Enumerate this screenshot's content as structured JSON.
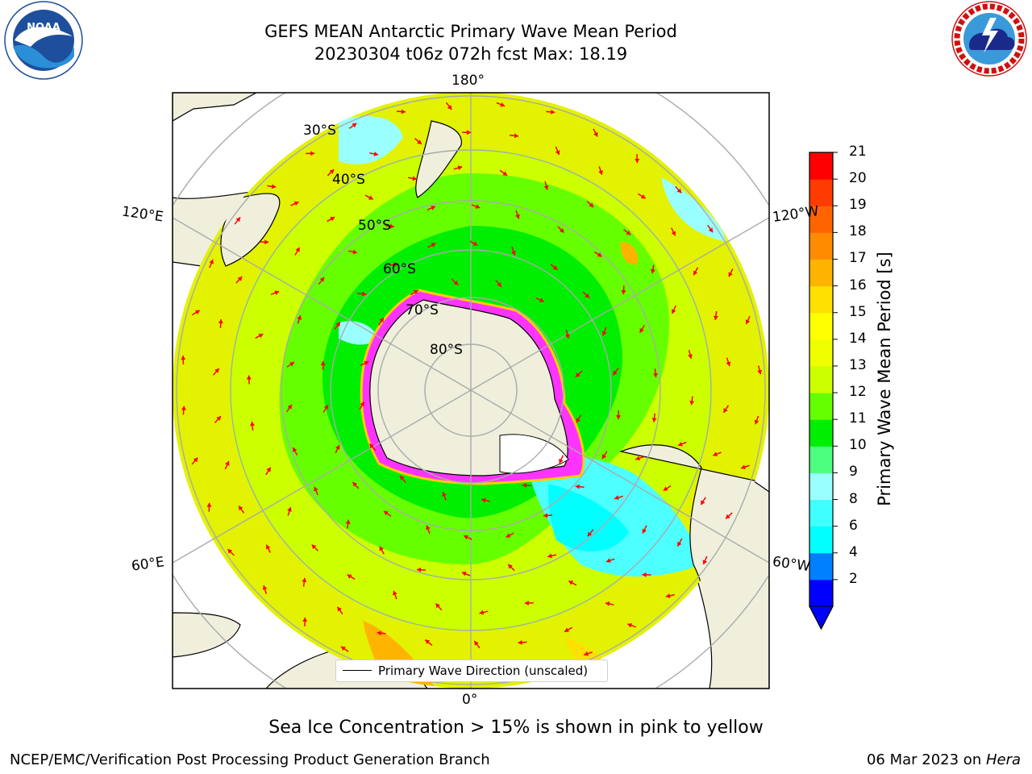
{
  "header": {
    "title_line1": "GEFS MEAN Antarctic Primary Wave Mean Period",
    "title_line2": "20230304 t06z 072h fcst   Max: 18.19"
  },
  "logos": {
    "left": {
      "icon": "noaa-logo",
      "text": "NOAA"
    },
    "right": {
      "icon": "nws-logo",
      "text": "NATIONAL WEATHER SERVICE"
    }
  },
  "map": {
    "projection": "south-polar-stereographic",
    "longitude_labels": [
      "180°",
      "120°E",
      "120°W",
      "60°E",
      "60°W",
      "0°"
    ],
    "latitude_labels": [
      "30°S",
      "40°S",
      "50°S",
      "60°S",
      "70°S",
      "80°S"
    ],
    "legend_label": "Primary Wave Direction (unscaled)",
    "arrow_color": "#ff0000"
  },
  "colorbar": {
    "title": "Primary Wave Mean Period [s]",
    "ticks": [
      "21",
      "20",
      "19",
      "18",
      "17",
      "16",
      "15",
      "14",
      "13",
      "12",
      "11",
      "10",
      "9",
      "8",
      "6",
      "4",
      "2"
    ],
    "colors": [
      "#0000ff",
      "#0080ff",
      "#00ffff",
      "#40ffff",
      "#99ffff",
      "#4dff7f",
      "#00ee00",
      "#66ff00",
      "#ccff00",
      "#eeff00",
      "#ffff00",
      "#ffe000",
      "#ffb400",
      "#ff8c00",
      "#ff6400",
      "#ff3c00",
      "#ff0000"
    ]
  },
  "footer": {
    "note": "Sea Ice Concentration > 15% is shown in pink to yellow",
    "credit_left": "NCEP/EMC/Verification Post Processing Product Generation Branch",
    "credit_date": "06 Mar 2023 on ",
    "credit_machine": "Hera"
  }
}
